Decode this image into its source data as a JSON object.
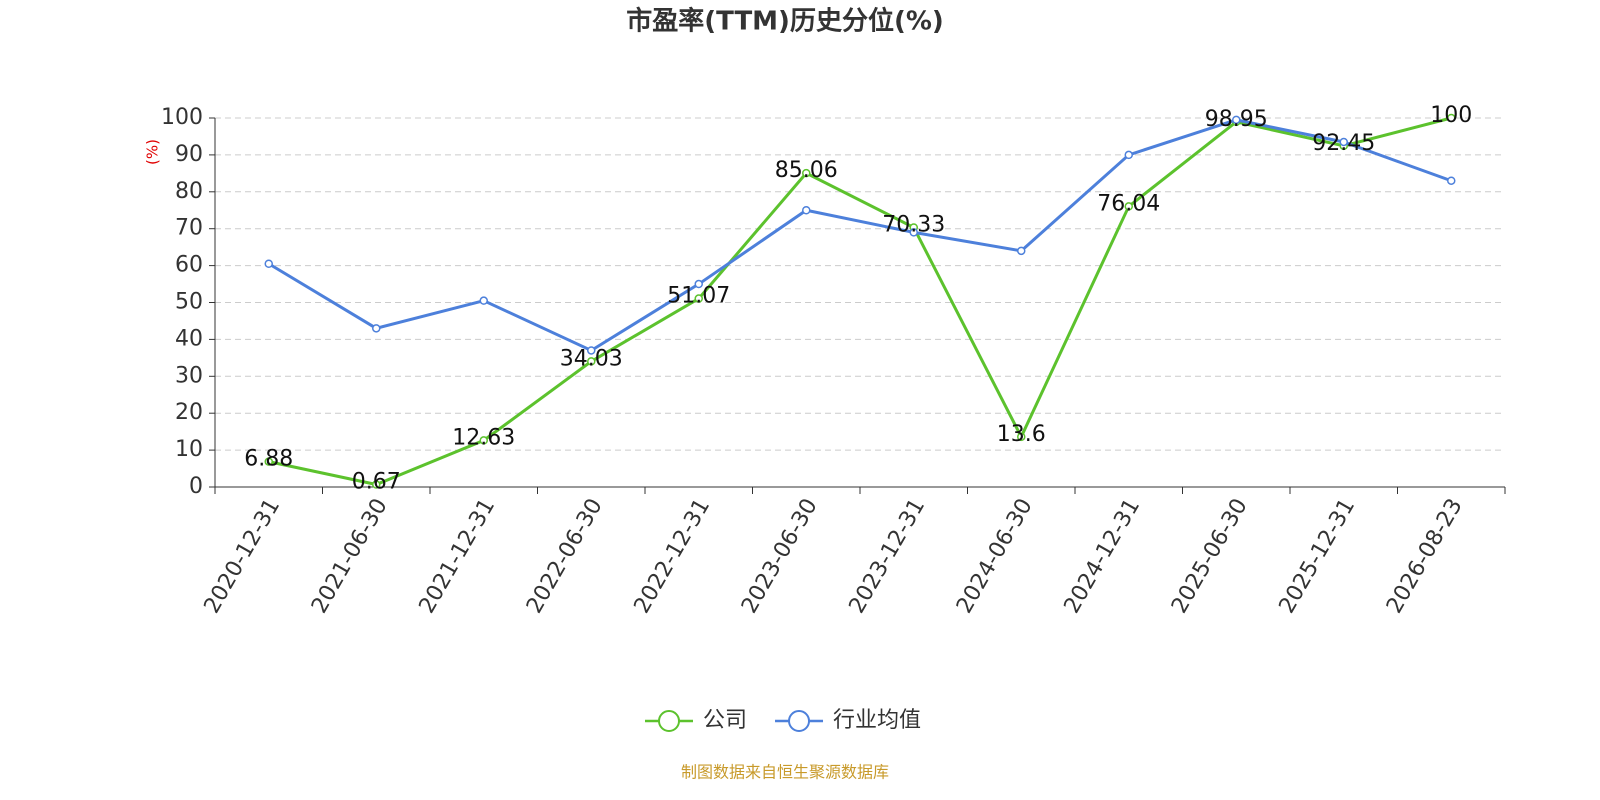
{
  "chart_data": {
    "type": "line",
    "title": "市盈率(TTM)历史分位(%)",
    "y_label": "(%)",
    "categories": [
      "2020-12-31",
      "2021-06-30",
      "2021-12-31",
      "2022-06-30",
      "2022-12-31",
      "2023-06-30",
      "2023-12-31",
      "2024-06-30",
      "2024-12-31",
      "2025-06-30",
      "2025-12-31",
      "2026-08-23"
    ],
    "series": [
      {
        "name": "公司",
        "color": "#5cc22d",
        "values": [
          6.88,
          0.67,
          12.63,
          34.03,
          51.07,
          85.06,
          70.33,
          13.6,
          76.04,
          98.95,
          92.45,
          100
        ],
        "show_labels": true
      },
      {
        "name": "行业均值",
        "color": "#4d80db",
        "values": [
          60.5,
          43,
          50.5,
          37,
          55,
          75,
          69,
          64,
          90,
          99.5,
          93.5,
          83
        ],
        "show_labels": false
      }
    ],
    "ylim": [
      0,
      100
    ],
    "yticks": [
      0,
      10,
      20,
      30,
      40,
      50,
      60,
      70,
      80,
      90,
      100
    ],
    "grid": true,
    "source": "制图数据来自恒生聚源数据库"
  }
}
